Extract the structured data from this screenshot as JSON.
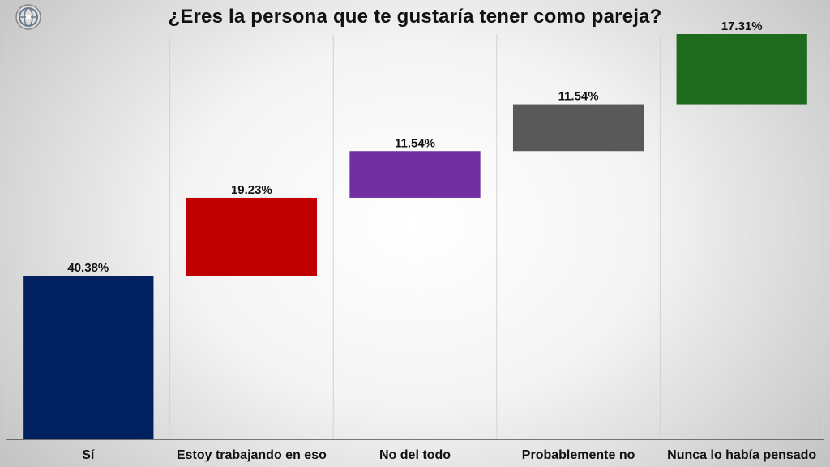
{
  "title": "¿Eres la persona que te gustaría tener como pareja?",
  "logo": {
    "icon": "globe-logo-icon"
  },
  "chart_data": {
    "type": "bar",
    "subtype": "waterfall",
    "title": "¿Eres la persona que te gustaría tener como pareja?",
    "categories": [
      "Sí",
      "Estoy trabajando en eso",
      "No del todo",
      "Probablemente no",
      "Nunca lo había pensado"
    ],
    "values": [
      40.38,
      19.23,
      11.54,
      11.54,
      17.31
    ],
    "value_labels": [
      "40.38%",
      "19.23%",
      "11.54%",
      "11.54%",
      "17.31%"
    ],
    "colors": [
      "#002060",
      "#c00000",
      "#7030a0",
      "#595959",
      "#1e6b1e"
    ],
    "ylim": [
      0,
      100
    ],
    "grid": "vertical separators",
    "legend": "none"
  }
}
